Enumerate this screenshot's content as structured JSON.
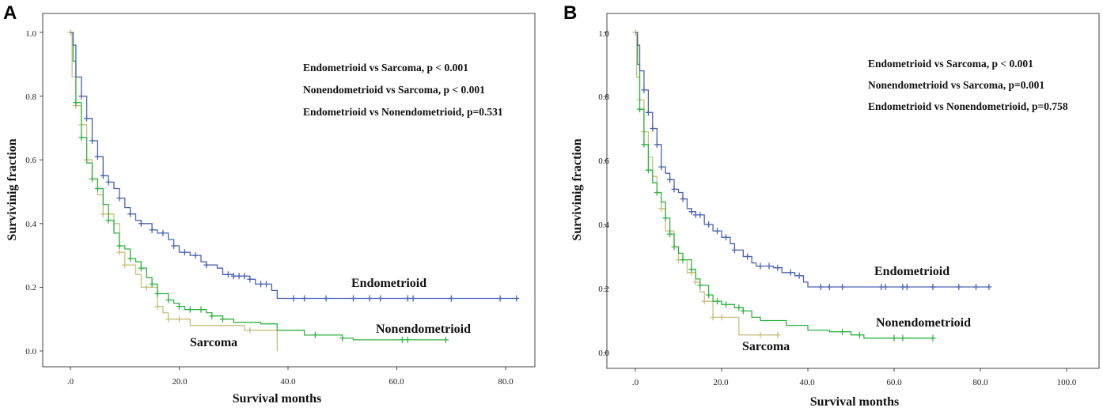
{
  "colors": {
    "endometrioid": "#4a63b3",
    "nonendometrioid": "#2fb342",
    "sarcoma": "#c9bf7a",
    "frame": "#444444"
  },
  "chart_data": [
    {
      "type": "line",
      "panel": "A",
      "title": "",
      "xlabel": "Survival months",
      "ylabel": "Survivinig fraction",
      "xlim": [
        -3,
        86
      ],
      "ylim": [
        -0.04,
        1.06
      ],
      "x_ticks": [
        0,
        20,
        40,
        60,
        80
      ],
      "x_tick_labels": [
        ".0",
        "20.0",
        "40.0",
        "60.0",
        "80.0"
      ],
      "y_ticks": [
        0,
        0.2,
        0.4,
        0.6,
        0.8,
        1.0
      ],
      "y_tick_labels": [
        "0.0",
        "0.2",
        "0.4",
        "0.6",
        "0.8",
        "1.0"
      ],
      "annotations": [
        "Endometrioid vs Sarcoma, p < 0.001",
        "Nonendometrioid vs Sarcoma, p < 0.001",
        "Endometrioid vs Nonendometrioid, p=0.531"
      ],
      "series": [
        {
          "name": "Endometrioid",
          "color_key": "endometrioid",
          "points": [
            [
              0,
              1.0
            ],
            [
              0.5,
              0.96
            ],
            [
              1,
              0.86
            ],
            [
              2,
              0.8
            ],
            [
              3,
              0.73
            ],
            [
              4,
              0.66
            ],
            [
              5,
              0.61
            ],
            [
              6,
              0.55
            ],
            [
              7,
              0.53
            ],
            [
              8,
              0.51
            ],
            [
              9,
              0.48
            ],
            [
              10,
              0.45
            ],
            [
              11,
              0.43
            ],
            [
              12,
              0.41
            ],
            [
              13,
              0.4
            ],
            [
              15,
              0.38
            ],
            [
              16,
              0.37
            ],
            [
              18,
              0.35
            ],
            [
              19,
              0.33
            ],
            [
              20,
              0.31
            ],
            [
              22,
              0.3
            ],
            [
              24,
              0.28
            ],
            [
              25,
              0.27
            ],
            [
              27,
              0.26
            ],
            [
              28,
              0.24
            ],
            [
              30,
              0.235
            ],
            [
              33,
              0.225
            ],
            [
              34,
              0.21
            ],
            [
              37,
              0.19
            ],
            [
              38,
              0.165
            ],
            [
              82,
              0.165
            ]
          ],
          "censor_x": [
            2,
            3,
            4,
            5,
            6,
            7,
            9,
            11,
            13,
            15,
            17,
            19,
            21,
            23,
            25,
            29,
            30,
            31,
            32,
            33,
            35,
            36,
            41,
            43,
            47,
            52,
            55,
            57,
            62,
            63,
            70,
            79,
            82
          ]
        },
        {
          "name": "Nonendometrioid",
          "color_key": "nonendometrioid",
          "points": [
            [
              0,
              1.0
            ],
            [
              0.5,
              0.91
            ],
            [
              1,
              0.78
            ],
            [
              2,
              0.67
            ],
            [
              3,
              0.59
            ],
            [
              4,
              0.54
            ],
            [
              5,
              0.51
            ],
            [
              6,
              0.46
            ],
            [
              7,
              0.41
            ],
            [
              8,
              0.37
            ],
            [
              9,
              0.33
            ],
            [
              10,
              0.32
            ],
            [
              11,
              0.29
            ],
            [
              12,
              0.28
            ],
            [
              13,
              0.26
            ],
            [
              14,
              0.23
            ],
            [
              15,
              0.21
            ],
            [
              16,
              0.18
            ],
            [
              18,
              0.16
            ],
            [
              19,
              0.15
            ],
            [
              20,
              0.14
            ],
            [
              21,
              0.13
            ],
            [
              25,
              0.12
            ],
            [
              26,
              0.11
            ],
            [
              28,
              0.1
            ],
            [
              30,
              0.09
            ],
            [
              35,
              0.085
            ],
            [
              38,
              0.065
            ],
            [
              43,
              0.05
            ],
            [
              50,
              0.04
            ],
            [
              52,
              0.035
            ],
            [
              69,
              0.035
            ]
          ],
          "censor_x": [
            1,
            2,
            4,
            5,
            7,
            9,
            11,
            13,
            15,
            16,
            18,
            20,
            22,
            24,
            26,
            28,
            45,
            50,
            61,
            62,
            69
          ]
        },
        {
          "name": "Sarcoma",
          "color_key": "sarcoma",
          "points": [
            [
              0,
              1.0
            ],
            [
              0.3,
              0.86
            ],
            [
              1,
              0.77
            ],
            [
              2,
              0.71
            ],
            [
              3,
              0.6
            ],
            [
              4,
              0.54
            ],
            [
              5,
              0.49
            ],
            [
              6,
              0.43
            ],
            [
              8,
              0.4
            ],
            [
              9,
              0.31
            ],
            [
              10,
              0.27
            ],
            [
              12,
              0.24
            ],
            [
              13,
              0.2
            ],
            [
              16,
              0.14
            ],
            [
              17,
              0.12
            ],
            [
              18,
              0.1
            ],
            [
              21,
              0.1
            ],
            [
              22,
              0.08
            ],
            [
              32,
              0.065
            ],
            [
              38,
              0.065
            ],
            [
              38,
              0.0
            ]
          ],
          "censor_x": [
            0,
            1,
            2,
            3,
            6,
            7,
            9,
            10,
            14,
            16,
            18,
            20,
            33
          ]
        }
      ],
      "series_labels": [
        "Endometrioid",
        "Nonendometrioid",
        "Sarcoma"
      ]
    },
    {
      "type": "line",
      "panel": "B",
      "title": "",
      "xlabel": "Survival months",
      "ylabel": "Survivinig fraction",
      "xlim": [
        -3,
        108
      ],
      "ylim": [
        -0.04,
        1.06
      ],
      "x_ticks": [
        0,
        20,
        40,
        60,
        80,
        100
      ],
      "x_tick_labels": [
        ".0",
        "20.0",
        "40.0",
        "60.0",
        "80.0",
        "100.0"
      ],
      "y_ticks": [
        0,
        0.2,
        0.4,
        0.6,
        0.8,
        1.0
      ],
      "y_tick_labels": [
        "0.0",
        "0.2",
        "0.4",
        "0.6",
        "0.8",
        "1.0"
      ],
      "annotations": [
        "Endometrioid vs Sarcoma, p < 0.001",
        "Nonendometrioid vs Sarcoma, p=0.001",
        "Endometrioid vs Nonendometrioid, p=0.758"
      ],
      "series": [
        {
          "name": "Endometrioid",
          "color_key": "endometrioid",
          "points": [
            [
              0,
              1.0
            ],
            [
              0.5,
              0.96
            ],
            [
              1,
              0.88
            ],
            [
              2,
              0.82
            ],
            [
              3,
              0.75
            ],
            [
              4,
              0.7
            ],
            [
              5,
              0.65
            ],
            [
              6,
              0.58
            ],
            [
              7,
              0.56
            ],
            [
              8,
              0.54
            ],
            [
              9,
              0.51
            ],
            [
              10,
              0.5
            ],
            [
              11,
              0.48
            ],
            [
              12,
              0.45
            ],
            [
              13,
              0.44
            ],
            [
              14,
              0.43
            ],
            [
              16,
              0.4
            ],
            [
              18,
              0.38
            ],
            [
              20,
              0.36
            ],
            [
              22,
              0.34
            ],
            [
              23,
              0.32
            ],
            [
              25,
              0.3
            ],
            [
              27,
              0.28
            ],
            [
              28,
              0.27
            ],
            [
              32,
              0.265
            ],
            [
              34,
              0.25
            ],
            [
              37,
              0.24
            ],
            [
              39,
              0.22
            ],
            [
              40,
              0.205
            ],
            [
              82,
              0.205
            ]
          ],
          "censor_x": [
            2,
            3,
            4,
            5,
            6,
            8,
            9,
            11,
            13,
            14,
            15,
            17,
            19,
            21,
            23,
            26,
            29,
            31,
            33,
            36,
            38,
            43,
            45,
            48,
            57,
            58,
            62,
            63,
            69,
            75,
            79,
            82
          ]
        },
        {
          "name": "Nonendometrioid",
          "color_key": "nonendometrioid",
          "points": [
            [
              0,
              1.0
            ],
            [
              0.5,
              0.9
            ],
            [
              1,
              0.76
            ],
            [
              2,
              0.65
            ],
            [
              3,
              0.57
            ],
            [
              4,
              0.53
            ],
            [
              5,
              0.5
            ],
            [
              6,
              0.47
            ],
            [
              7,
              0.42
            ],
            [
              8,
              0.37
            ],
            [
              9,
              0.33
            ],
            [
              10,
              0.31
            ],
            [
              11,
              0.29
            ],
            [
              13,
              0.26
            ],
            [
              14,
              0.23
            ],
            [
              15,
              0.21
            ],
            [
              17,
              0.18
            ],
            [
              18,
              0.16
            ],
            [
              20,
              0.15
            ],
            [
              23,
              0.14
            ],
            [
              25,
              0.13
            ],
            [
              27,
              0.11
            ],
            [
              29,
              0.1
            ],
            [
              32,
              0.1
            ],
            [
              35,
              0.085
            ],
            [
              40,
              0.07
            ],
            [
              45,
              0.065
            ],
            [
              50,
              0.055
            ],
            [
              53,
              0.045
            ],
            [
              69,
              0.045
            ]
          ],
          "censor_x": [
            1,
            2,
            3,
            5,
            7,
            8,
            9,
            11,
            13,
            15,
            17,
            19,
            21,
            24,
            25,
            48,
            52,
            60,
            62,
            69
          ]
        },
        {
          "name": "Sarcoma",
          "color_key": "sarcoma",
          "points": [
            [
              0,
              1.0
            ],
            [
              0.3,
              0.86
            ],
            [
              1,
              0.79
            ],
            [
              2,
              0.69
            ],
            [
              3,
              0.61
            ],
            [
              4,
              0.55
            ],
            [
              5,
              0.5
            ],
            [
              6,
              0.45
            ],
            [
              7,
              0.38
            ],
            [
              9,
              0.33
            ],
            [
              10,
              0.29
            ],
            [
              12,
              0.25
            ],
            [
              14,
              0.22
            ],
            [
              15,
              0.19
            ],
            [
              16,
              0.16
            ],
            [
              18,
              0.11
            ],
            [
              23,
              0.11
            ],
            [
              24,
              0.055
            ],
            [
              33,
              0.055
            ]
          ],
          "censor_x": [
            0,
            1,
            2,
            6,
            8,
            10,
            13,
            14,
            16,
            18,
            20,
            29,
            33
          ]
        }
      ],
      "series_labels": [
        "Endometrioid",
        "Nonendometrioid",
        "Sarcoma"
      ]
    }
  ]
}
